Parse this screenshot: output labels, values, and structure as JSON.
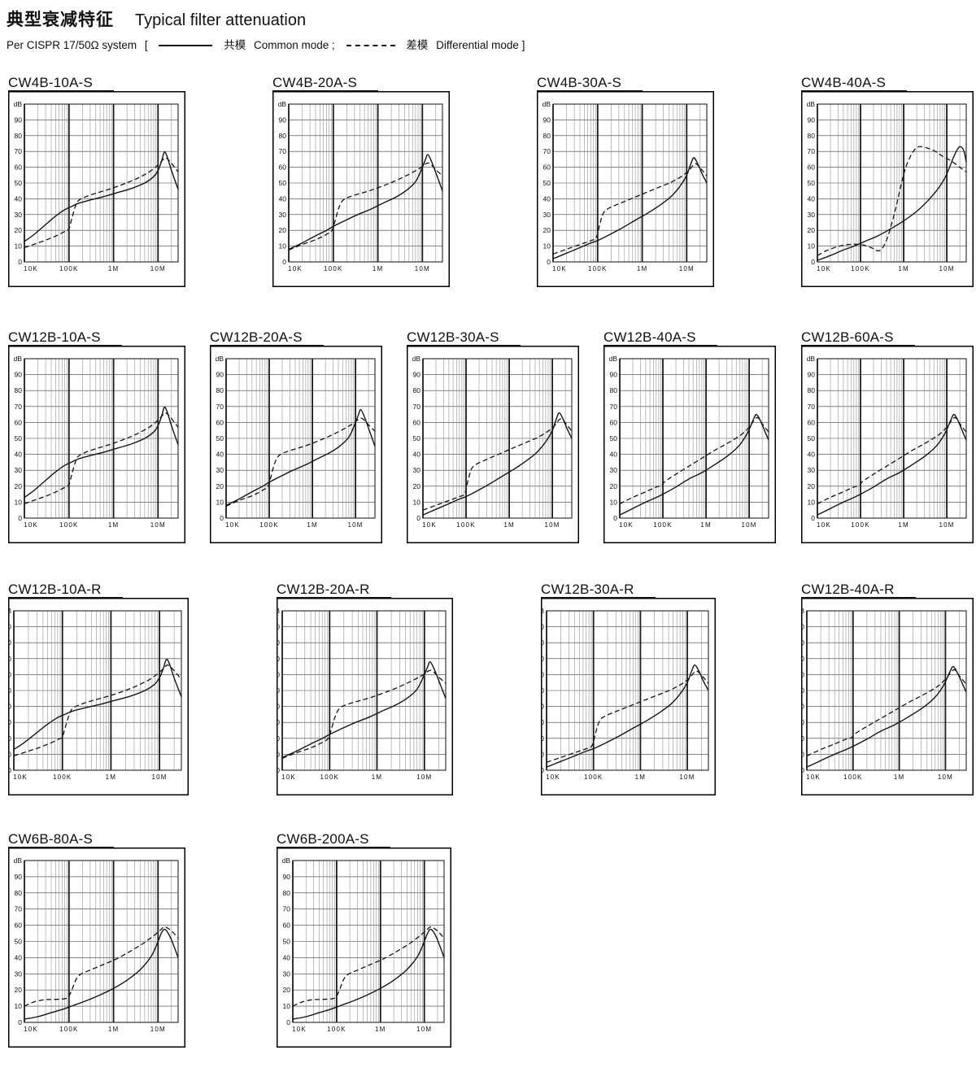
{
  "page": {
    "title_zh": "典型衰减特征",
    "title_en": "Typical filter attenuation",
    "standard": "Per CISPR 17/50Ω  system",
    "bracket_open": "[",
    "legend": {
      "common_zh": "共模",
      "common_en": "Common mode ;",
      "diff_zh": "差模",
      "diff_en": "Differential mode ]"
    }
  },
  "colors": {
    "ink": "#141414",
    "grid_major": "#3a3a3a",
    "grid_minor": "#8a8a8a",
    "decade": "#1a1a1a",
    "frame": "#000000"
  },
  "chart_data": {
    "type": "line",
    "x_axis": {
      "scale": "log",
      "ticks": [
        "10K",
        "100K",
        "1M",
        "10M"
      ],
      "range_hz": [
        10000,
        28000000
      ]
    },
    "y_axis": {
      "unit": "dB",
      "ticks": [
        90,
        80,
        70,
        60,
        50,
        40,
        30,
        20,
        10,
        0
      ],
      "range": [
        0,
        100
      ]
    },
    "series_legend": [
      {
        "name": "共模 Common mode",
        "style": "solid"
      },
      {
        "name": "差模 Differential mode",
        "style": "dashed"
      }
    ],
    "curve_sets": {
      "A": {
        "common": [
          [
            4,
            13
          ],
          [
            4.2,
            17
          ],
          [
            4.45,
            23
          ],
          [
            4.7,
            29
          ],
          [
            4.9,
            33
          ],
          [
            5.05,
            35
          ],
          [
            5.2,
            37
          ],
          [
            5.45,
            39
          ],
          [
            5.8,
            41.5
          ],
          [
            6.1,
            44
          ],
          [
            6.4,
            46.5
          ],
          [
            6.7,
            50
          ],
          [
            6.9,
            54
          ],
          [
            7.0,
            58
          ],
          [
            7.08,
            64
          ],
          [
            7.14,
            69.5
          ],
          [
            7.2,
            67
          ],
          [
            7.3,
            58
          ],
          [
            7.45,
            46
          ]
        ],
        "differential": [
          [
            4,
            9
          ],
          [
            4.25,
            11.5
          ],
          [
            4.5,
            14
          ],
          [
            4.75,
            17
          ],
          [
            4.92,
            19.5
          ],
          [
            5.0,
            21
          ],
          [
            5.06,
            27
          ],
          [
            5.13,
            34
          ],
          [
            5.2,
            38.5
          ],
          [
            5.35,
            41
          ],
          [
            5.6,
            43.5
          ],
          [
            5.9,
            46
          ],
          [
            6.2,
            49
          ],
          [
            6.5,
            52.5
          ],
          [
            6.8,
            57
          ],
          [
            7.0,
            61.5
          ],
          [
            7.1,
            64.5
          ],
          [
            7.17,
            66
          ],
          [
            7.27,
            63.5
          ],
          [
            7.45,
            57
          ]
        ]
      },
      "B": {
        "common": [
          [
            4,
            8
          ],
          [
            4.3,
            12
          ],
          [
            4.6,
            16.5
          ],
          [
            4.85,
            20
          ],
          [
            5.0,
            22.5
          ],
          [
            5.25,
            26
          ],
          [
            5.55,
            30
          ],
          [
            5.85,
            33.5
          ],
          [
            6.1,
            37
          ],
          [
            6.4,
            41
          ],
          [
            6.65,
            45.5
          ],
          [
            6.85,
            51
          ],
          [
            7.0,
            60
          ],
          [
            7.07,
            65
          ],
          [
            7.12,
            68
          ],
          [
            7.2,
            64
          ],
          [
            7.32,
            55
          ],
          [
            7.45,
            45
          ]
        ],
        "differential": [
          [
            4,
            7.5
          ],
          [
            4.3,
            11
          ],
          [
            4.6,
            14
          ],
          [
            4.85,
            17.5
          ],
          [
            4.97,
            20
          ],
          [
            5.04,
            26
          ],
          [
            5.12,
            34
          ],
          [
            5.2,
            38.5
          ],
          [
            5.3,
            40.5
          ],
          [
            5.5,
            42.5
          ],
          [
            5.8,
            45
          ],
          [
            6.1,
            48
          ],
          [
            6.4,
            51.5
          ],
          [
            6.7,
            55.5
          ],
          [
            6.95,
            59.5
          ],
          [
            7.1,
            62.5
          ],
          [
            7.18,
            62
          ],
          [
            7.3,
            58.5
          ],
          [
            7.45,
            54.5
          ]
        ]
      },
      "C": {
        "common": [
          [
            4,
            2
          ],
          [
            4.3,
            5.5
          ],
          [
            4.6,
            9
          ],
          [
            4.85,
            12
          ],
          [
            5.0,
            13.5
          ],
          [
            5.25,
            17
          ],
          [
            5.55,
            21.5
          ],
          [
            5.85,
            26.5
          ],
          [
            6.1,
            30.5
          ],
          [
            6.4,
            36
          ],
          [
            6.65,
            41.5
          ],
          [
            6.85,
            48
          ],
          [
            7.0,
            55
          ],
          [
            7.09,
            62
          ],
          [
            7.16,
            66
          ],
          [
            7.25,
            62
          ],
          [
            7.35,
            55.5
          ],
          [
            7.45,
            50
          ]
        ],
        "differential": [
          [
            4,
            5
          ],
          [
            4.3,
            8
          ],
          [
            4.6,
            11
          ],
          [
            4.85,
            13.5
          ],
          [
            4.97,
            15.5
          ],
          [
            5.05,
            24
          ],
          [
            5.13,
            31
          ],
          [
            5.25,
            34
          ],
          [
            5.45,
            36.5
          ],
          [
            5.75,
            40
          ],
          [
            6.05,
            43.5
          ],
          [
            6.35,
            47
          ],
          [
            6.65,
            50.5
          ],
          [
            6.9,
            54.5
          ],
          [
            7.05,
            58
          ],
          [
            7.15,
            61.5
          ],
          [
            7.22,
            62
          ],
          [
            7.35,
            58
          ],
          [
            7.45,
            54.5
          ]
        ]
      },
      "D": {
        "common": [
          [
            4,
            1
          ],
          [
            4.3,
            4
          ],
          [
            4.6,
            7.5
          ],
          [
            4.85,
            10
          ],
          [
            5.1,
            13
          ],
          [
            5.4,
            16.5
          ],
          [
            5.7,
            21
          ],
          [
            6.0,
            26
          ],
          [
            6.3,
            32
          ],
          [
            6.55,
            38.5
          ],
          [
            6.8,
            46.5
          ],
          [
            6.95,
            53
          ],
          [
            7.05,
            59
          ],
          [
            7.15,
            66
          ],
          [
            7.25,
            71.5
          ],
          [
            7.32,
            73
          ],
          [
            7.4,
            70
          ],
          [
            7.45,
            63
          ]
        ],
        "differential": [
          [
            4,
            4
          ],
          [
            4.2,
            7
          ],
          [
            4.45,
            9.5
          ],
          [
            4.65,
            10.8
          ],
          [
            4.85,
            11.2
          ],
          [
            5.05,
            10.8
          ],
          [
            5.25,
            9
          ],
          [
            5.4,
            7
          ],
          [
            5.5,
            8.5
          ],
          [
            5.62,
            15
          ],
          [
            5.75,
            27
          ],
          [
            5.85,
            38
          ],
          [
            5.95,
            50
          ],
          [
            6.05,
            60
          ],
          [
            6.15,
            66.5
          ],
          [
            6.25,
            71
          ],
          [
            6.35,
            73
          ],
          [
            6.5,
            72.5
          ],
          [
            6.7,
            70.5
          ],
          [
            6.9,
            67
          ],
          [
            7.1,
            64
          ],
          [
            7.3,
            60
          ],
          [
            7.45,
            57
          ]
        ]
      },
      "E": {
        "common": [
          [
            4,
            2
          ],
          [
            4.3,
            6
          ],
          [
            4.6,
            10
          ],
          [
            4.85,
            13
          ],
          [
            5.0,
            15
          ],
          [
            5.3,
            19.5
          ],
          [
            5.6,
            24.5
          ],
          [
            5.9,
            28.5
          ],
          [
            6.2,
            33.5
          ],
          [
            6.5,
            39
          ],
          [
            6.75,
            45
          ],
          [
            6.9,
            50.5
          ],
          [
            7.0,
            55.5
          ],
          [
            7.1,
            62
          ],
          [
            7.17,
            65
          ],
          [
            7.27,
            60.5
          ],
          [
            7.37,
            54
          ],
          [
            7.45,
            49
          ]
        ],
        "differential": [
          [
            4,
            9
          ],
          [
            4.3,
            13
          ],
          [
            4.6,
            16.5
          ],
          [
            4.85,
            19.5
          ],
          [
            4.97,
            20.5
          ],
          [
            5.05,
            23
          ],
          [
            5.3,
            27.5
          ],
          [
            5.6,
            32.5
          ],
          [
            5.9,
            37.5
          ],
          [
            6.2,
            42.5
          ],
          [
            6.5,
            47
          ],
          [
            6.8,
            52
          ],
          [
            7.0,
            57
          ],
          [
            7.12,
            61.5
          ],
          [
            7.2,
            63
          ],
          [
            7.32,
            58.5
          ],
          [
            7.45,
            54
          ]
        ]
      },
      "F": {
        "common": [
          [
            4,
            2
          ],
          [
            4.3,
            3.5
          ],
          [
            4.6,
            6
          ],
          [
            4.85,
            8
          ],
          [
            5.1,
            10.5
          ],
          [
            5.4,
            13.5
          ],
          [
            5.7,
            17
          ],
          [
            6.0,
            21
          ],
          [
            6.3,
            26
          ],
          [
            6.6,
            32.5
          ],
          [
            6.85,
            41
          ],
          [
            7.0,
            50
          ],
          [
            7.08,
            55.5
          ],
          [
            7.15,
            57.5
          ],
          [
            7.25,
            54
          ],
          [
            7.35,
            47.5
          ],
          [
            7.45,
            40
          ]
        ],
        "differential": [
          [
            4,
            10
          ],
          [
            4.2,
            12.5
          ],
          [
            4.45,
            14
          ],
          [
            4.7,
            14.2
          ],
          [
            4.95,
            15
          ],
          [
            5.05,
            19
          ],
          [
            5.15,
            26
          ],
          [
            5.25,
            29.5
          ],
          [
            5.45,
            32
          ],
          [
            5.75,
            35.5
          ],
          [
            6.05,
            39
          ],
          [
            6.35,
            43.5
          ],
          [
            6.65,
            48.5
          ],
          [
            6.9,
            53.5
          ],
          [
            7.05,
            57
          ],
          [
            7.15,
            59
          ],
          [
            7.3,
            56.5
          ],
          [
            7.45,
            52
          ]
        ]
      }
    },
    "charts": [
      {
        "title": "CW4B-10A-S",
        "curve_set": "A",
        "y_labels_clipped": false
      },
      {
        "title": "CW4B-20A-S",
        "curve_set": "B",
        "y_labels_clipped": false
      },
      {
        "title": "CW4B-30A-S",
        "curve_set": "C",
        "y_labels_clipped": false
      },
      {
        "title": "CW4B-40A-S",
        "curve_set": "D",
        "y_labels_clipped": false
      },
      {
        "title": "CW12B-10A-S",
        "curve_set": "A",
        "y_labels_clipped": false
      },
      {
        "title": "CW12B-20A-S",
        "curve_set": "B",
        "y_labels_clipped": false
      },
      {
        "title": "CW12B-30A-S",
        "curve_set": "C",
        "y_labels_clipped": false
      },
      {
        "title": "CW12B-40A-S",
        "curve_set": "E",
        "y_labels_clipped": false
      },
      {
        "title": "CW12B-60A-S",
        "curve_set": "E",
        "y_labels_clipped": false
      },
      {
        "title": "CW12B-10A-R",
        "curve_set": "A",
        "y_labels_clipped": true
      },
      {
        "title": "CW12B-20A-R",
        "curve_set": "B",
        "y_labels_clipped": true
      },
      {
        "title": "CW12B-30A-R",
        "curve_set": "C",
        "y_labels_clipped": true
      },
      {
        "title": "CW12B-40A-R",
        "curve_set": "E",
        "y_labels_clipped": true
      },
      {
        "title": "CW6B-80A-S",
        "curve_set": "F",
        "y_labels_clipped": false
      },
      {
        "title": "CW6B-200A-S",
        "curve_set": "F",
        "y_labels_clipped": false
      }
    ]
  }
}
